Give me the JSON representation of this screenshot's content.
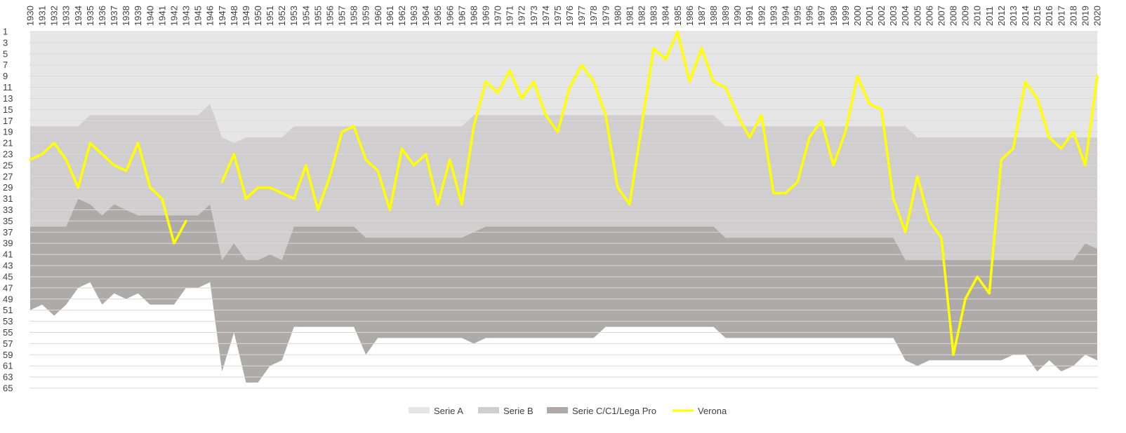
{
  "chart_data": {
    "type": "area",
    "title": "",
    "xlabel": "",
    "ylabel": "",
    "y_axis": {
      "min": 1,
      "max": 65,
      "step": 2,
      "reversed": true
    },
    "x": [
      1930,
      1931,
      1932,
      1933,
      1934,
      1935,
      1936,
      1937,
      1938,
      1939,
      1940,
      1941,
      1942,
      1943,
      1945,
      1946,
      1947,
      1948,
      1949,
      1950,
      1951,
      1952,
      1953,
      1954,
      1955,
      1956,
      1957,
      1958,
      1959,
      1960,
      1961,
      1962,
      1963,
      1964,
      1965,
      1966,
      1967,
      1968,
      1969,
      1970,
      1971,
      1972,
      1973,
      1974,
      1975,
      1976,
      1977,
      1978,
      1979,
      1980,
      1981,
      1982,
      1983,
      1984,
      1985,
      1986,
      1987,
      1988,
      1989,
      1990,
      1991,
      1992,
      1993,
      1994,
      1995,
      1996,
      1997,
      1998,
      1999,
      2000,
      2001,
      2002,
      2003,
      2004,
      2005,
      2006,
      2007,
      2008,
      2009,
      2010,
      2011,
      2012,
      2013,
      2014,
      2015,
      2016,
      2017,
      2018,
      2019,
      2020
    ],
    "series": [
      {
        "name": "Serie A",
        "kind": "band",
        "color": "#e7e6e6",
        "bottom": [
          18,
          18,
          18,
          18,
          18,
          16,
          16,
          16,
          16,
          16,
          16,
          16,
          16,
          16,
          16,
          14,
          20,
          21,
          20,
          20,
          20,
          20,
          18,
          18,
          18,
          18,
          18,
          18,
          18,
          18,
          18,
          18,
          18,
          18,
          18,
          18,
          18,
          16,
          16,
          16,
          16,
          16,
          16,
          16,
          16,
          16,
          16,
          16,
          16,
          16,
          16,
          16,
          16,
          16,
          16,
          16,
          16,
          16,
          18,
          18,
          18,
          18,
          18,
          18,
          18,
          18,
          18,
          18,
          18,
          18,
          18,
          18,
          18,
          18,
          20,
          20,
          20,
          20,
          20,
          20,
          20,
          20,
          20,
          20,
          20,
          20,
          20,
          20,
          20,
          20
        ]
      },
      {
        "name": "Serie B",
        "kind": "band",
        "color": "#d0cece",
        "bottom": [
          36,
          36,
          36,
          36,
          31,
          32,
          34,
          32,
          33,
          34,
          34,
          34,
          34,
          34,
          34,
          32,
          42,
          39,
          42,
          42,
          41,
          42,
          36,
          36,
          36,
          36,
          36,
          36,
          38,
          38,
          38,
          38,
          38,
          38,
          38,
          38,
          38,
          37,
          36,
          36,
          36,
          36,
          36,
          36,
          36,
          36,
          36,
          36,
          36,
          36,
          36,
          36,
          36,
          36,
          36,
          36,
          36,
          36,
          38,
          38,
          38,
          38,
          38,
          38,
          38,
          38,
          38,
          38,
          38,
          38,
          38,
          38,
          38,
          42,
          42,
          42,
          42,
          42,
          42,
          42,
          42,
          42,
          42,
          42,
          42,
          42,
          42,
          42,
          39,
          40
        ]
      },
      {
        "name": "Serie C/C1/Lega Pro",
        "kind": "band",
        "color": "#aeaaaa",
        "bottom": [
          51,
          50,
          52,
          50,
          47,
          46,
          50,
          48,
          49,
          48,
          50,
          50,
          50,
          47,
          47,
          46,
          62,
          55,
          64,
          64,
          61,
          60,
          54,
          54,
          54,
          54,
          54,
          54,
          59,
          56,
          56,
          56,
          56,
          56,
          56,
          56,
          56,
          57,
          56,
          56,
          56,
          56,
          56,
          56,
          56,
          56,
          56,
          56,
          54,
          54,
          54,
          54,
          54,
          54,
          54,
          54,
          54,
          54,
          56,
          56,
          56,
          56,
          56,
          56,
          56,
          56,
          56,
          56,
          56,
          56,
          56,
          56,
          56,
          60,
          61,
          60,
          60,
          60,
          60,
          60,
          60,
          60,
          59,
          59,
          62,
          60,
          62,
          61,
          59,
          60
        ]
      },
      {
        "name": "Verona",
        "kind": "line",
        "color": "#ffff00",
        "values": [
          24,
          23,
          21,
          24,
          29,
          21,
          23,
          25,
          26,
          21,
          29,
          31,
          39,
          35,
          null,
          null,
          28,
          23,
          31,
          29,
          29,
          30,
          31,
          25,
          33,
          27,
          19,
          18,
          24,
          26,
          33,
          22,
          25,
          23,
          32,
          24,
          32,
          18,
          10,
          12,
          8,
          13,
          10,
          16,
          19,
          11,
          7,
          10,
          16,
          29,
          32,
          18,
          4,
          6,
          1,
          10,
          4,
          10,
          11,
          16,
          20,
          16,
          30,
          30,
          28,
          20,
          17,
          25,
          19,
          9,
          14,
          15,
          31,
          37,
          27,
          35,
          38,
          59,
          49,
          45,
          48,
          24,
          22,
          10,
          13,
          20,
          22,
          19,
          25,
          9
        ]
      }
    ],
    "legend": {
      "position": "bottom",
      "entries": [
        "Serie A",
        "Serie B",
        "Serie C/C1/Lega Pro",
        "Verona"
      ]
    }
  }
}
